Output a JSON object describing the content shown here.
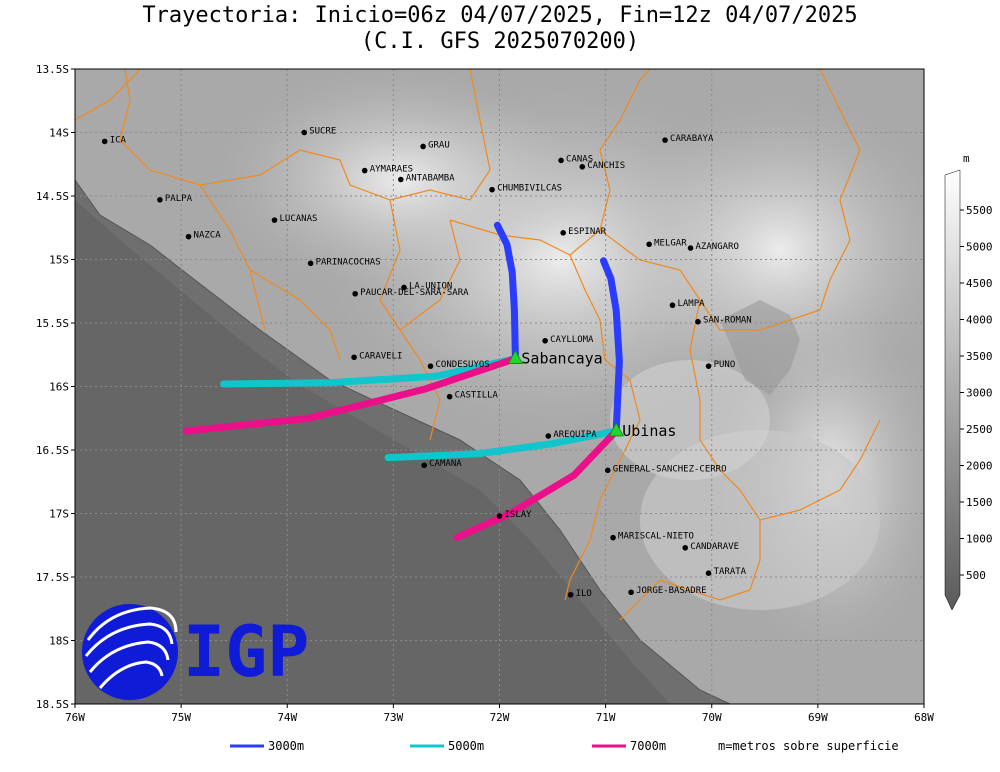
{
  "title": {
    "line1": "Trayectoria: Inicio=06z 04/07/2025, Fin=12z 04/07/2025",
    "line2": "(C.I. GFS 2025070200)"
  },
  "axes": {
    "x_ticks": [
      "76W",
      "75W",
      "74W",
      "73W",
      "72W",
      "71W",
      "70W",
      "69W",
      "68W"
    ],
    "y_ticks": [
      "13.5S",
      "14S",
      "14.5S",
      "15S",
      "15.5S",
      "16S",
      "16.5S",
      "17S",
      "17.5S",
      "18S",
      "18.5S"
    ],
    "lon_range": [
      -76,
      -68
    ],
    "lat_range": [
      -18.5,
      -13.5
    ]
  },
  "colorbar": {
    "unit": "m",
    "labels": [
      "5500",
      "5000",
      "4500",
      "4000",
      "3500",
      "3000",
      "2500",
      "2000",
      "1500",
      "1000",
      "500"
    ]
  },
  "places": [
    {
      "name": "ICA",
      "lon": -75.72,
      "lat": -14.07
    },
    {
      "name": "SUCRE",
      "lon": -73.84,
      "lat": -14.0
    },
    {
      "name": "GRAU",
      "lon": -72.72,
      "lat": -14.11
    },
    {
      "name": "AYMARAES",
      "lon": -73.27,
      "lat": -14.3
    },
    {
      "name": "ANTABAMBA",
      "lon": -72.93,
      "lat": -14.37
    },
    {
      "name": "CANAS",
      "lon": -71.42,
      "lat": -14.22
    },
    {
      "name": "CANCHIS",
      "lon": -71.22,
      "lat": -14.27
    },
    {
      "name": "CHUMBIVILCAS",
      "lon": -72.07,
      "lat": -14.45
    },
    {
      "name": "CARABAYA",
      "lon": -70.44,
      "lat": -14.06
    },
    {
      "name": "PALPA",
      "lon": -75.2,
      "lat": -14.53
    },
    {
      "name": "LUCANAS",
      "lon": -74.12,
      "lat": -14.69
    },
    {
      "name": "NAZCA",
      "lon": -74.93,
      "lat": -14.82
    },
    {
      "name": "ESPINAR",
      "lon": -71.4,
      "lat": -14.79
    },
    {
      "name": "MELGAR",
      "lon": -70.59,
      "lat": -14.88
    },
    {
      "name": "AZANGARO",
      "lon": -70.2,
      "lat": -14.91
    },
    {
      "name": "PARINACOCHAS",
      "lon": -73.78,
      "lat": -15.03
    },
    {
      "name": "LA-UNION",
      "lon": -72.9,
      "lat": -15.22
    },
    {
      "name": "PAUCAR-DEL-SARA-SARA",
      "lon": -73.36,
      "lat": -15.27
    },
    {
      "name": "LAMPA",
      "lon": -70.37,
      "lat": -15.36
    },
    {
      "name": "SAN-ROMAN",
      "lon": -70.13,
      "lat": -15.49
    },
    {
      "name": "CAYLLOMA",
      "lon": -71.57,
      "lat": -15.64
    },
    {
      "name": "CARAVELI",
      "lon": -73.37,
      "lat": -15.77
    },
    {
      "name": "CONDESUYOS",
      "lon": -72.65,
      "lat": -15.84
    },
    {
      "name": "PUNO",
      "lon": -70.03,
      "lat": -15.84
    },
    {
      "name": "CASTILLA",
      "lon": -72.47,
      "lat": -16.08
    },
    {
      "name": "AREQUIPA",
      "lon": -71.54,
      "lat": -16.39
    },
    {
      "name": "CAMANA",
      "lon": -72.71,
      "lat": -16.62
    },
    {
      "name": "GENERAL-SANCHEZ-CERRO",
      "lon": -70.98,
      "lat": -16.66
    },
    {
      "name": "ISLAY",
      "lon": -72.0,
      "lat": -17.02
    },
    {
      "name": "MARISCAL-NIETO",
      "lon": -70.93,
      "lat": -17.19
    },
    {
      "name": "CANDARAVE",
      "lon": -70.25,
      "lat": -17.27
    },
    {
      "name": "TARATA",
      "lon": -70.03,
      "lat": -17.47
    },
    {
      "name": "JORGE-BASADRE",
      "lon": -70.76,
      "lat": -17.62
    },
    {
      "name": "ILO",
      "lon": -71.33,
      "lat": -17.64
    }
  ],
  "volcanoes": [
    {
      "name": "Sabancaya",
      "lon": -71.85,
      "lat": -15.78
    },
    {
      "name": "Ubinas",
      "lon": -70.9,
      "lat": -16.35
    }
  ],
  "trajectories": [
    {
      "volcano": "Sabancaya",
      "level": "3000m",
      "color": "#2a3cff",
      "points": [
        [
          -71.85,
          -15.78
        ],
        [
          -71.86,
          -15.4
        ],
        [
          -71.88,
          -15.1
        ],
        [
          -71.93,
          -14.88
        ],
        [
          -72.02,
          -14.73
        ]
      ]
    },
    {
      "volcano": "Sabancaya",
      "level": "5000m",
      "color": "#11c5cc",
      "points": [
        [
          -71.85,
          -15.78
        ],
        [
          -72.6,
          -15.92
        ],
        [
          -73.6,
          -15.97
        ],
        [
          -74.6,
          -15.98
        ]
      ]
    },
    {
      "volcano": "Sabancaya",
      "level": "7000m",
      "color": "#ec0f8a",
      "points": [
        [
          -71.85,
          -15.78
        ],
        [
          -72.7,
          -16.02
        ],
        [
          -73.8,
          -16.25
        ],
        [
          -74.95,
          -16.35
        ]
      ]
    },
    {
      "volcano": "Ubinas",
      "level": "3000m",
      "color": "#2a3cff",
      "points": [
        [
          -70.9,
          -16.35
        ],
        [
          -70.87,
          -15.8
        ],
        [
          -70.9,
          -15.4
        ],
        [
          -70.95,
          -15.15
        ],
        [
          -71.02,
          -15.01
        ]
      ]
    },
    {
      "volcano": "Ubinas",
      "level": "5000m",
      "color": "#11c5cc",
      "points": [
        [
          -70.9,
          -16.35
        ],
        [
          -71.5,
          -16.45
        ],
        [
          -72.2,
          -16.53
        ],
        [
          -73.05,
          -16.56
        ]
      ]
    },
    {
      "volcano": "Ubinas",
      "level": "7000m",
      "color": "#ec0f8a",
      "points": [
        [
          -70.9,
          -16.35
        ],
        [
          -71.3,
          -16.7
        ],
        [
          -71.9,
          -17.0
        ],
        [
          -72.4,
          -17.19
        ]
      ]
    }
  ],
  "legend": {
    "items": [
      {
        "label": "3000m",
        "color": "#2a3cff"
      },
      {
        "label": "5000m",
        "color": "#11c5cc"
      },
      {
        "label": "7000m",
        "color": "#ec0f8a"
      }
    ],
    "note": "m=metros sobre superficie"
  },
  "logo": {
    "text": "IGP"
  }
}
